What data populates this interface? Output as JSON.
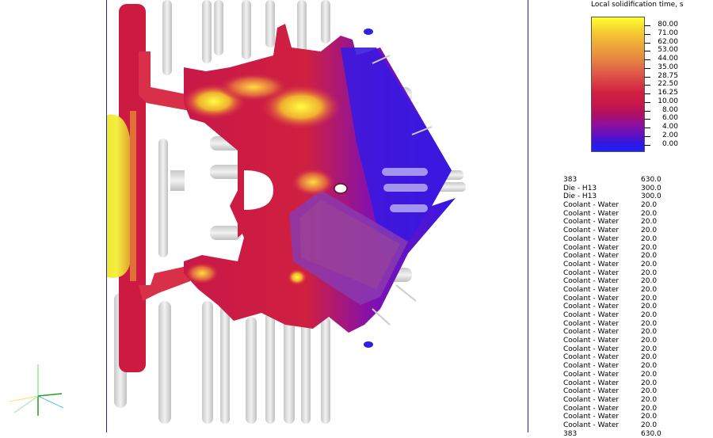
{
  "legend": {
    "title": "Local solidification time, s",
    "values": [
      "80.00",
      "71.00",
      "62.00",
      "53.00",
      "44.00",
      "35.00",
      "28.75",
      "22.50",
      "16.25",
      "10.00",
      "8.00",
      "6.00",
      "4.00",
      "2.00",
      "0.00"
    ]
  },
  "materials": [
    {
      "name": "383",
      "temp": "630.0"
    },
    {
      "name": "Die - H13",
      "temp": "300.0"
    },
    {
      "name": "Die - H13",
      "temp": "300.0"
    },
    {
      "name": "Coolant - Water",
      "temp": "20.0"
    },
    {
      "name": "Coolant - Water",
      "temp": "20.0"
    },
    {
      "name": "Coolant - Water",
      "temp": "20.0"
    },
    {
      "name": "Coolant - Water",
      "temp": "20.0"
    },
    {
      "name": "Coolant - Water",
      "temp": "20.0"
    },
    {
      "name": "Coolant - Water",
      "temp": "20.0"
    },
    {
      "name": "Coolant - Water",
      "temp": "20.0"
    },
    {
      "name": "Coolant - Water",
      "temp": "20.0"
    },
    {
      "name": "Coolant - Water",
      "temp": "20.0"
    },
    {
      "name": "Coolant - Water",
      "temp": "20.0"
    },
    {
      "name": "Coolant - Water",
      "temp": "20.0"
    },
    {
      "name": "Coolant - Water",
      "temp": "20.0"
    },
    {
      "name": "Coolant - Water",
      "temp": "20.0"
    },
    {
      "name": "Coolant - Water",
      "temp": "20.0"
    },
    {
      "name": "Coolant - Water",
      "temp": "20.0"
    },
    {
      "name": "Coolant - Water",
      "temp": "20.0"
    },
    {
      "name": "Coolant - Water",
      "temp": "20.0"
    },
    {
      "name": "Coolant - Water",
      "temp": "20.0"
    },
    {
      "name": "Coolant - Water",
      "temp": "20.0"
    },
    {
      "name": "Coolant - Water",
      "temp": "20.0"
    },
    {
      "name": "Coolant - Water",
      "temp": "20.0"
    },
    {
      "name": "Coolant - Water",
      "temp": "20.0"
    },
    {
      "name": "Coolant - Water",
      "temp": "20.0"
    },
    {
      "name": "Coolant - Water",
      "temp": "20.0"
    },
    {
      "name": "Coolant - Water",
      "temp": "20.0"
    },
    {
      "name": "Coolant - Water",
      "temp": "20.0"
    },
    {
      "name": "Coolant - Water",
      "temp": "20.0"
    },
    {
      "name": "383",
      "temp": "630.0"
    }
  ],
  "colors": {
    "viewport_border": "#2020c0",
    "max_color": "#ffff30",
    "min_color": "#2020ff",
    "cooling_channels": "#d8d8d8"
  }
}
